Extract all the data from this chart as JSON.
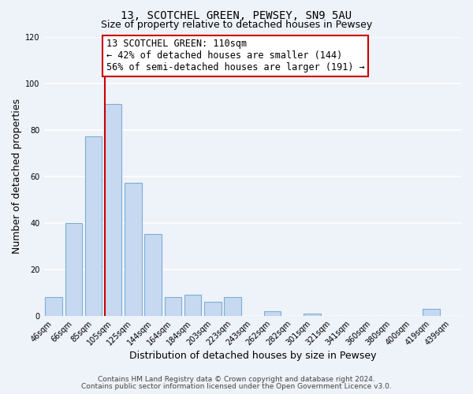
{
  "title": "13, SCOTCHEL GREEN, PEWSEY, SN9 5AU",
  "subtitle": "Size of property relative to detached houses in Pewsey",
  "xlabel": "Distribution of detached houses by size in Pewsey",
  "ylabel": "Number of detached properties",
  "bar_labels": [
    "46sqm",
    "66sqm",
    "85sqm",
    "105sqm",
    "125sqm",
    "144sqm",
    "164sqm",
    "184sqm",
    "203sqm",
    "223sqm",
    "243sqm",
    "262sqm",
    "282sqm",
    "301sqm",
    "321sqm",
    "341sqm",
    "360sqm",
    "380sqm",
    "400sqm",
    "419sqm",
    "439sqm"
  ],
  "bar_values": [
    8,
    40,
    77,
    91,
    57,
    35,
    8,
    9,
    6,
    8,
    0,
    2,
    0,
    1,
    0,
    0,
    0,
    0,
    0,
    3,
    0
  ],
  "bar_color": "#c6d9f0",
  "bar_edge_color": "#7bafd4",
  "red_line_bar_index": 3,
  "ylim": [
    0,
    120
  ],
  "yticks": [
    0,
    20,
    40,
    60,
    80,
    100,
    120
  ],
  "annotation_line1": "13 SCOTCHEL GREEN: 110sqm",
  "annotation_line2": "← 42% of detached houses are smaller (144)",
  "annotation_line3": "56% of semi-detached houses are larger (191) →",
  "annotation_box_color": "#ffffff",
  "annotation_box_edge_color": "#cc0000",
  "footer_line1": "Contains HM Land Registry data © Crown copyright and database right 2024.",
  "footer_line2": "Contains public sector information licensed under the Open Government Licence v3.0.",
  "background_color": "#eef2f9",
  "grid_color": "#ffffff",
  "title_fontsize": 10,
  "subtitle_fontsize": 9,
  "axis_label_fontsize": 9,
  "tick_fontsize": 7,
  "annotation_fontsize": 8.5,
  "footer_fontsize": 6.5
}
